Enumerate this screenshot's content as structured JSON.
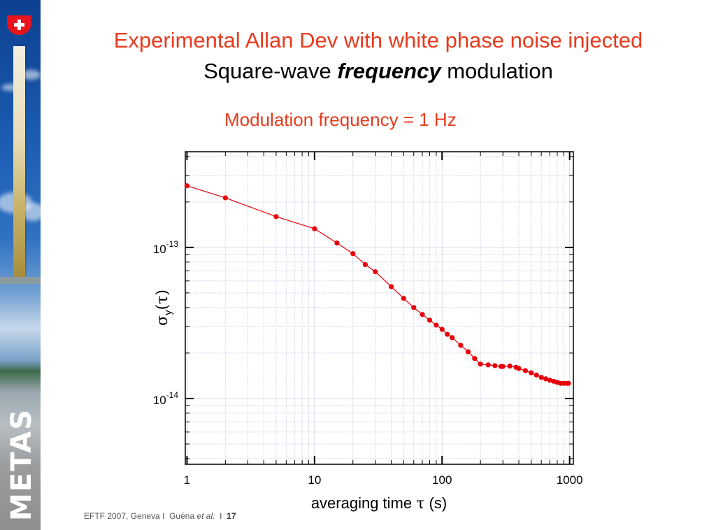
{
  "sidebar": {
    "logo_text": "METAS",
    "emblem": "swiss-cross-shield-icon"
  },
  "header": {
    "title": "Experimental Allan Dev with white phase noise injected",
    "subtitle_prefix": "Square-wave ",
    "subtitle_emphasis": "frequency",
    "subtitle_suffix": " modulation",
    "modulation_note": "Modulation frequency = 1 Hz"
  },
  "colors": {
    "title_red": "#e63a1e",
    "series_red": "#e8000a",
    "grid": "#d8dcea"
  },
  "footer": {
    "event": "EFTF 2007, Geneva",
    "separator": "I",
    "author": "Guéna",
    "author_suffix": "et al.",
    "page": "17"
  },
  "chart_data": {
    "type": "line",
    "title": "Modulation frequency = 1 Hz",
    "xlabel_prefix": "averaging time ",
    "xlabel_symbol": "τ",
    "xlabel_suffix": " (s)",
    "ylabel_symbol": "σ",
    "ylabel_sub": "y",
    "ylabel_arg": "(τ)",
    "xscale": "log",
    "yscale": "log",
    "xlim": [
      0.97,
      1070
    ],
    "ylim": [
      3.67e-15,
      4.3e-13
    ],
    "grid": true,
    "legend": "none",
    "x_ticks": [
      {
        "value": 1,
        "label": "1"
      },
      {
        "value": 10,
        "label": "10"
      },
      {
        "value": 100,
        "label": "100"
      },
      {
        "value": 1000,
        "label": "1000"
      }
    ],
    "y_ticks": [
      {
        "value": 1e-13,
        "base": "10",
        "exp": "-13"
      },
      {
        "value": 1e-14,
        "base": "10",
        "exp": "-14"
      }
    ],
    "series": [
      {
        "name": "Allan deviation",
        "marker": "circle",
        "x": [
          1,
          2,
          5,
          10,
          15,
          20,
          25,
          30,
          40,
          50,
          60,
          70,
          80,
          90,
          100,
          110,
          120,
          140,
          160,
          180,
          200,
          230,
          260,
          290,
          300,
          340,
          380,
          400,
          450,
          500,
          550,
          600,
          650,
          700,
          750,
          800,
          850,
          900,
          950,
          980
        ],
        "y": [
          2.56e-13,
          2.13e-13,
          1.6e-13,
          1.33e-13,
          1.07e-13,
          9.1e-14,
          7.7e-14,
          6.9e-14,
          5.5e-14,
          4.6e-14,
          4e-14,
          3.6e-14,
          3.3e-14,
          3.06e-14,
          2.87e-14,
          2.66e-14,
          2.53e-14,
          2.25e-14,
          2.04e-14,
          1.84e-14,
          1.69e-14,
          1.67e-14,
          1.65e-14,
          1.63e-14,
          1.63e-14,
          1.64e-14,
          1.61e-14,
          1.58e-14,
          1.53e-14,
          1.48e-14,
          1.43e-14,
          1.38e-14,
          1.35e-14,
          1.32e-14,
          1.3e-14,
          1.28e-14,
          1.26e-14,
          1.26e-14,
          1.26e-14,
          1.26e-14
        ]
      }
    ]
  }
}
